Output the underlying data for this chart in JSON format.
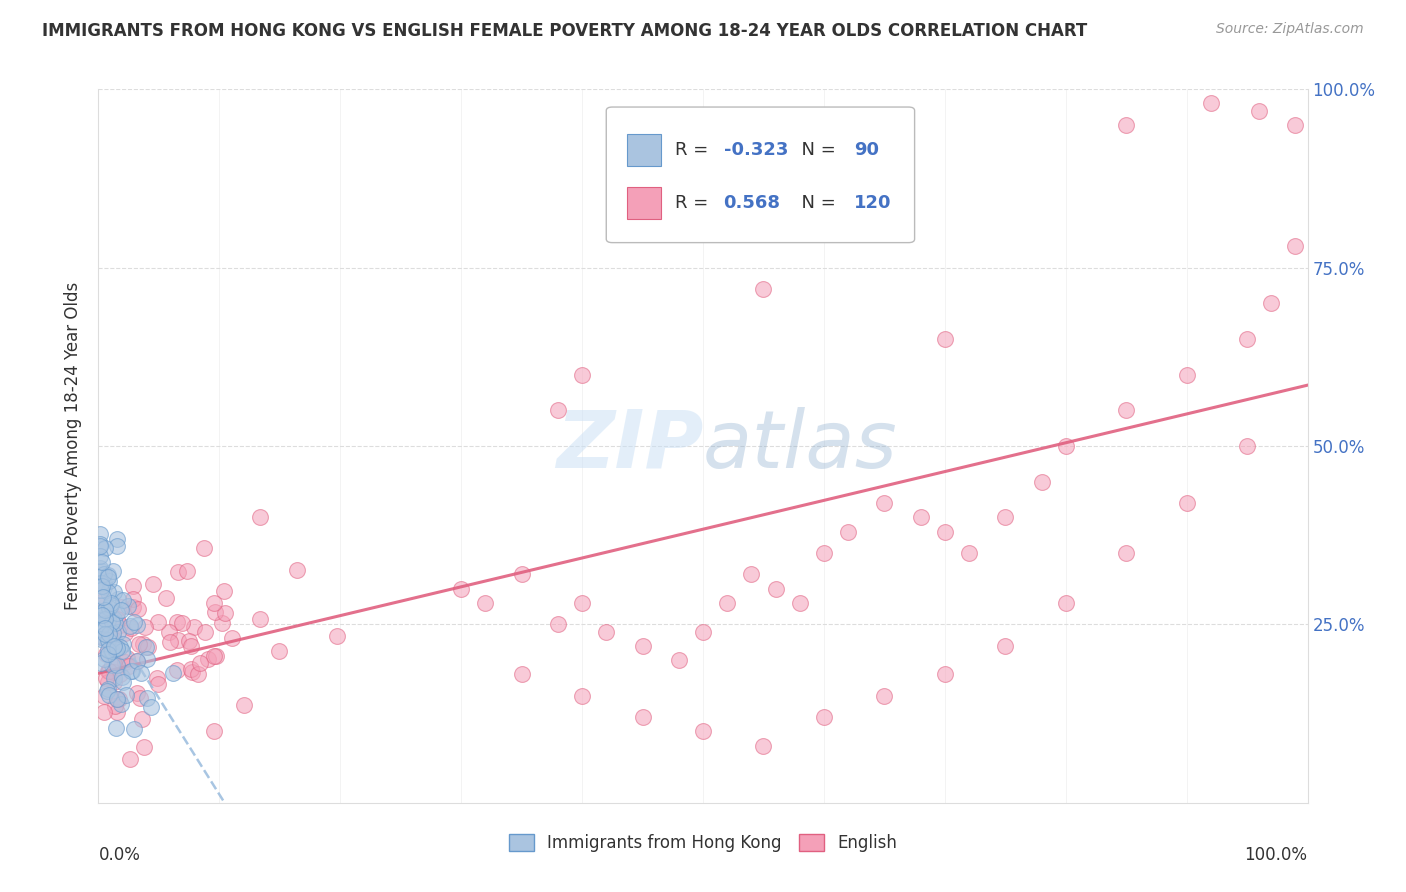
{
  "title": "IMMIGRANTS FROM HONG KONG VS ENGLISH FEMALE POVERTY AMONG 18-24 YEAR OLDS CORRELATION CHART",
  "source": "Source: ZipAtlas.com",
  "ylabel": "Female Poverty Among 18-24 Year Olds",
  "legend_blue_label": "Immigrants from Hong Kong",
  "legend_pink_label": "English",
  "R_blue": -0.323,
  "N_blue": 90,
  "R_pink": 0.568,
  "N_pink": 120,
  "blue_color": "#aac4e0",
  "pink_color": "#f4a0b8",
  "blue_edge": "#6699cc",
  "pink_edge": "#e06080",
  "trend_blue_color": "#99bbdd",
  "trend_pink_color": "#e06080",
  "watermark_color": "#c8dff5",
  "background_color": "#ffffff",
  "grid_color": "#dddddd",
  "right_tick_color": "#4472c4",
  "title_color": "#333333",
  "source_color": "#999999",
  "label_color": "#333333"
}
